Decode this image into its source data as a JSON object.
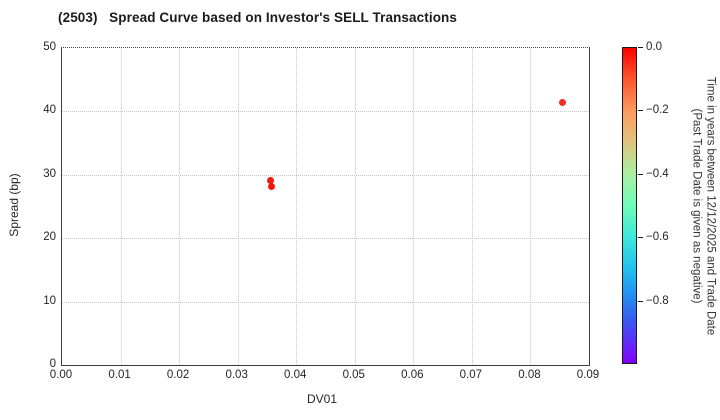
{
  "title": "(2503)   Spread Curve based on Investor's SELL Transactions",
  "chart_data": {
    "type": "scatter",
    "title": "(2503)   Spread Curve based on Investor's SELL Transactions",
    "xlabel": "DV01",
    "ylabel": "Spread (bp)",
    "xlim": [
      0.0,
      0.09
    ],
    "ylim": [
      0,
      50
    ],
    "grid": true,
    "x_ticks": [
      {
        "value": 0.0,
        "label": "0.00"
      },
      {
        "value": 0.01,
        "label": "0.01"
      },
      {
        "value": 0.02,
        "label": "0.02"
      },
      {
        "value": 0.03,
        "label": "0.03"
      },
      {
        "value": 0.04,
        "label": "0.04"
      },
      {
        "value": 0.05,
        "label": "0.05"
      },
      {
        "value": 0.06,
        "label": "0.06"
      },
      {
        "value": 0.07,
        "label": "0.07"
      },
      {
        "value": 0.08,
        "label": "0.08"
      },
      {
        "value": 0.09,
        "label": "0.09"
      }
    ],
    "y_ticks": [
      {
        "value": 0,
        "label": "0"
      },
      {
        "value": 10,
        "label": "10"
      },
      {
        "value": 20,
        "label": "20"
      },
      {
        "value": 30,
        "label": "30"
      },
      {
        "value": 40,
        "label": "40"
      },
      {
        "value": 50,
        "label": "50"
      }
    ],
    "points": [
      {
        "x": 0.0358,
        "y": 28.9,
        "time_years": 0.0,
        "color": "#f2190e"
      },
      {
        "x": 0.036,
        "y": 28.0,
        "time_years": 0.0,
        "color": "#f2190e"
      },
      {
        "x": 0.0856,
        "y": 41.2,
        "time_years": 0.0,
        "color": "#f32a1c"
      }
    ],
    "colorbar": {
      "range_top": 0.0,
      "range_bottom": -1.0,
      "ticks": [
        {
          "value": 0.0,
          "label": "0.0"
        },
        {
          "value": -0.2,
          "label": "−0.2"
        },
        {
          "value": -0.4,
          "label": "−0.4"
        },
        {
          "value": -0.6,
          "label": "−0.6"
        },
        {
          "value": -0.8,
          "label": "−0.8"
        }
      ],
      "label_line1": "Time in years between 12/12/2025 and Trade Date",
      "label_line2": "(Past Trade Date is given as negative)",
      "gradient": [
        "#ff0000 0%",
        "#fe4f2a 9%",
        "#fc9b5e 20%",
        "#ddc57f 30%",
        "#a9efa2 40%",
        "#70fcb9 50%",
        "#3fe8da 60%",
        "#22c1ee 70%",
        "#2293f1 78%",
        "#3a56ee 87%",
        "#6b21fb 95%",
        "#7f00ff 100%"
      ]
    }
  }
}
